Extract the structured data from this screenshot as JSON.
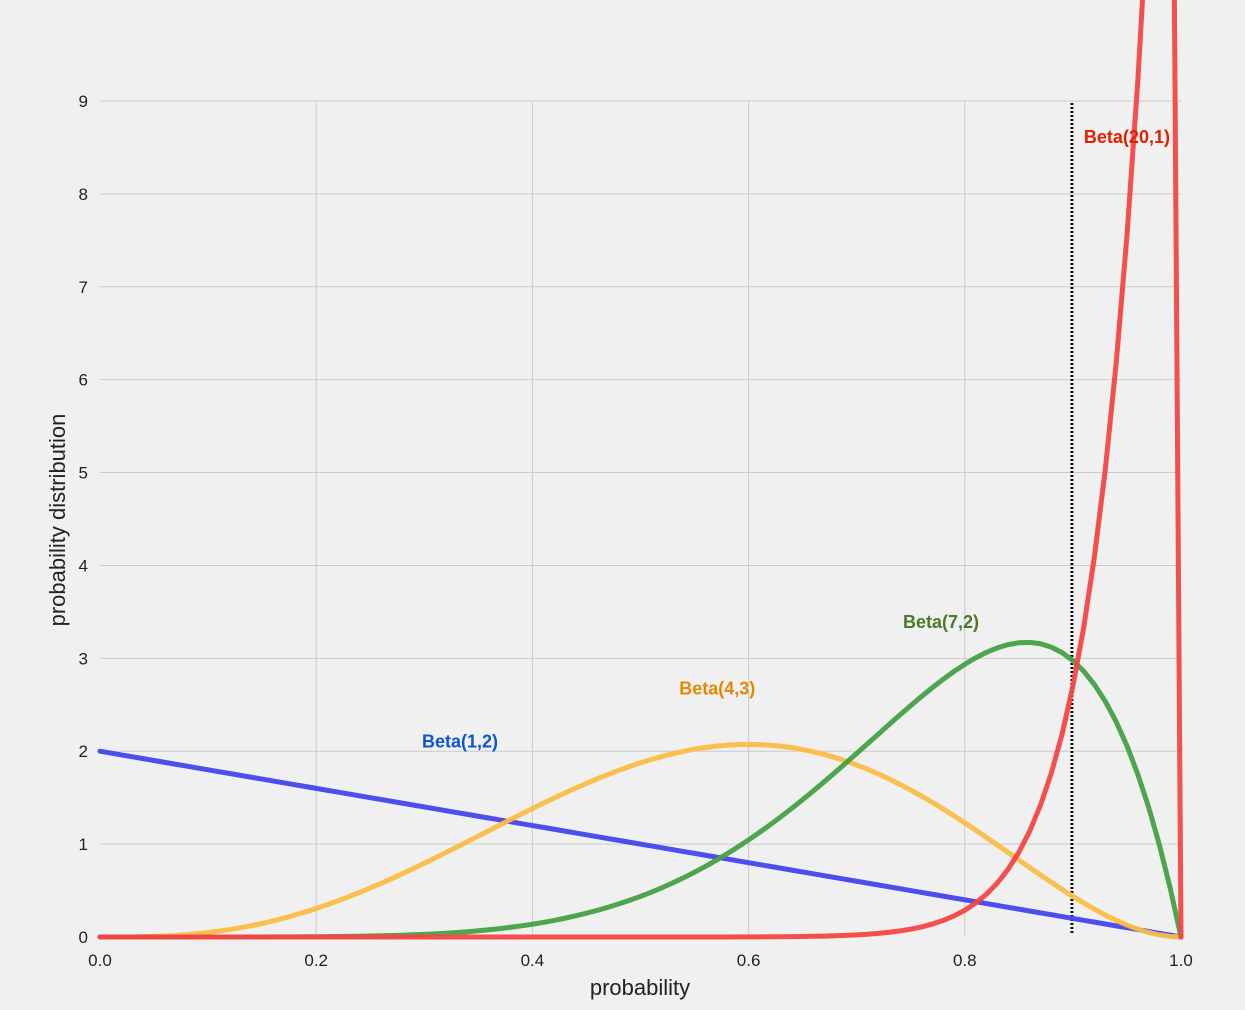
{
  "chart_data": {
    "type": "line",
    "title": "",
    "xlabel": "probability",
    "ylabel": "probability distribution",
    "xlim": [
      0,
      1
    ],
    "ylim": [
      0,
      9
    ],
    "grid": true,
    "x_ticks": [
      "0.0",
      "0.2",
      "0.4",
      "0.6",
      "0.8",
      "1.0"
    ],
    "y_ticks": [
      "0",
      "1",
      "2",
      "3",
      "4",
      "5",
      "6",
      "7",
      "8",
      "9"
    ],
    "series": [
      {
        "name": "Beta(1,2)",
        "alpha": 1,
        "beta": 2,
        "color": "#4444ee",
        "label_color": "#1155cc",
        "peak": {
          "x": 0.333,
          "y": 1.78
        }
      },
      {
        "name": "Beta(4,3)",
        "alpha": 4,
        "beta": 3,
        "color": "#fbbc44",
        "label_color": "#e08a00",
        "peak": {
          "x": 0.571,
          "y": 2.35
        }
      },
      {
        "name": "Beta(7,2)",
        "alpha": 7,
        "beta": 2,
        "color": "#44a044",
        "label_color": "#4b7a2a",
        "peak": {
          "x": 0.778,
          "y": 3.07
        }
      },
      {
        "name": "Beta(20,1)",
        "alpha": 20,
        "beta": 1,
        "color": "#f44444",
        "label_color": "#e02000",
        "peak": {
          "x": 0.95,
          "y": 8.29
        }
      }
    ],
    "reference_line": {
      "x": 0.9,
      "style": "dotted",
      "color": "#111111"
    }
  }
}
